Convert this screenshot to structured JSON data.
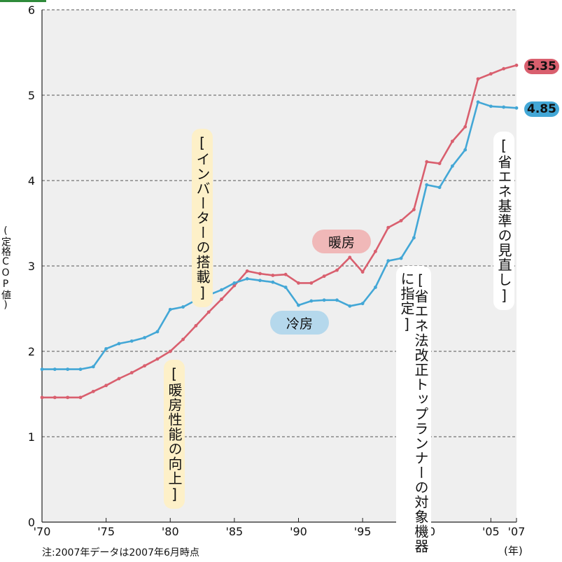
{
  "chart_data": {
    "type": "line",
    "ylabel": "(定格COP値)",
    "xunit": "(年)",
    "ylim": [
      0,
      6
    ],
    "yticks": [
      "0",
      "1",
      "2",
      "3",
      "4",
      "5",
      "6"
    ],
    "xticks": [
      {
        "year": 1970,
        "label": "'70"
      },
      {
        "year": 1975,
        "label": "'75"
      },
      {
        "year": 1980,
        "label": "'80"
      },
      {
        "year": 1985,
        "label": "'85"
      },
      {
        "year": 1990,
        "label": "'90"
      },
      {
        "year": 1995,
        "label": "'95"
      },
      {
        "year": 2000,
        "label": "'00"
      },
      {
        "year": 2005,
        "label": "'05"
      },
      {
        "year": 2007,
        "label": "'07"
      }
    ],
    "grid": "horizontal-dashed",
    "x": [
      1970,
      1971,
      1972,
      1973,
      1974,
      1975,
      1976,
      1977,
      1978,
      1979,
      1980,
      1981,
      1982,
      1983,
      1984,
      1985,
      1986,
      1987,
      1988,
      1989,
      1990,
      1991,
      1992,
      1993,
      1994,
      1995,
      1996,
      1997,
      1998,
      1999,
      2000,
      2001,
      2002,
      2003,
      2004,
      2005,
      2006,
      2007
    ],
    "series": [
      {
        "name": "暖房",
        "color": "#d95f6e",
        "values": [
          1.46,
          1.46,
          1.46,
          1.46,
          1.53,
          1.6,
          1.68,
          1.75,
          1.83,
          1.91,
          2.0,
          2.14,
          2.3,
          2.46,
          2.61,
          2.77,
          2.94,
          2.91,
          2.89,
          2.9,
          2.8,
          2.8,
          2.88,
          2.95,
          3.1,
          2.93,
          3.17,
          3.45,
          3.53,
          3.66,
          4.22,
          4.2,
          4.46,
          4.63,
          5.19,
          5.25,
          5.31,
          5.35
        ],
        "end_label": "5.35"
      },
      {
        "name": "冷房",
        "color": "#43a7d6",
        "values": [
          1.79,
          1.79,
          1.79,
          1.79,
          1.82,
          2.03,
          2.09,
          2.12,
          2.16,
          2.23,
          2.49,
          2.52,
          2.6,
          2.66,
          2.72,
          2.8,
          2.85,
          2.83,
          2.81,
          2.75,
          2.54,
          2.59,
          2.6,
          2.6,
          2.53,
          2.56,
          2.75,
          3.06,
          3.09,
          3.33,
          3.95,
          3.92,
          4.17,
          4.36,
          4.92,
          4.87,
          4.86,
          4.85
        ],
        "end_label": "4.85"
      }
    ],
    "annotations": {
      "inverter": "[インバーターの搭載]",
      "heating_perf": "[暖房性能の向上]",
      "top_runner": "[省エネ法改正",
      "top_runner_2": "トップランナーの対象機器に指定]",
      "standard": "[省エネ基準の見直し]"
    },
    "note": "注:2007年データは2007年6月時点"
  }
}
